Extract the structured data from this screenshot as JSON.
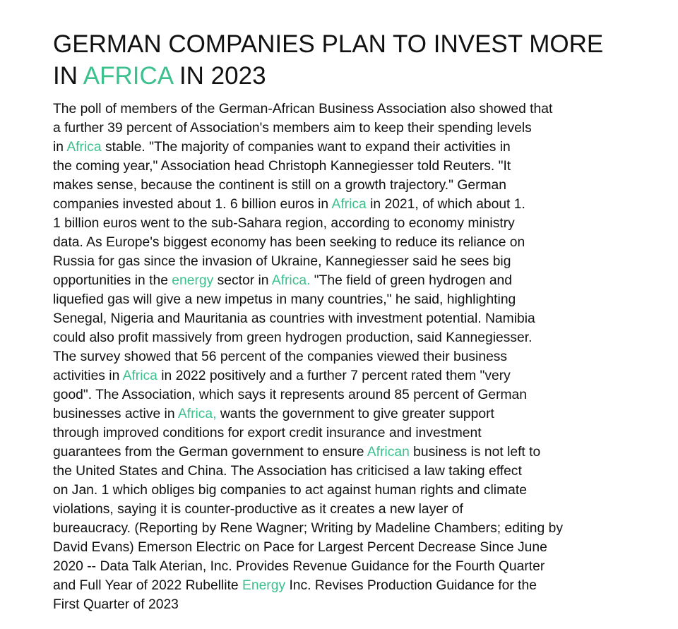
{
  "accent_color": "#3cc08e",
  "text_color": "#111111",
  "headline": {
    "lines": [
      [
        {
          "text": "GERMAN COMPANIES PLAN TO INVEST MORE",
          "hl": false
        }
      ],
      [
        {
          "text": "IN ",
          "hl": false
        },
        {
          "text": "AFRICA",
          "hl": true
        },
        {
          "text": " IN 2023",
          "hl": false
        }
      ]
    ]
  },
  "body": {
    "lines": [
      [
        {
          "text": "The poll of members of the German-African Business Association also showed that",
          "hl": false
        }
      ],
      [
        {
          "text": "a further 39 percent of Association's members aim to keep their spending levels",
          "hl": false
        }
      ],
      [
        {
          "text": "in ",
          "hl": false
        },
        {
          "text": "Africa",
          "hl": true
        },
        {
          "text": " stable. \"The majority of companies want to expand their activities in",
          "hl": false
        }
      ],
      [
        {
          "text": "the coming year,\" Association head Christoph Kannegiesser told Reuters. \"It",
          "hl": false
        }
      ],
      [
        {
          "text": "makes sense, because the continent is still on a growth trajectory.\" German",
          "hl": false
        }
      ],
      [
        {
          "text": "companies invested about 1. 6 billion euros in ",
          "hl": false
        },
        {
          "text": "Africa",
          "hl": true
        },
        {
          "text": " in 2021, of which about 1.",
          "hl": false
        }
      ],
      [
        {
          "text": "1 billion euros went to the sub-Sahara region, according to economy ministry",
          "hl": false
        }
      ],
      [
        {
          "text": "data. As Europe's biggest economy has been seeking to reduce its reliance on",
          "hl": false
        }
      ],
      [
        {
          "text": "Russia for gas since the invasion of Ukraine, Kannegiesser said he sees big",
          "hl": false
        }
      ],
      [
        {
          "text": "opportunities in the ",
          "hl": false
        },
        {
          "text": "energy",
          "hl": true
        },
        {
          "text": " sector in ",
          "hl": false
        },
        {
          "text": "Africa.",
          "hl": true
        },
        {
          "text": " \"The field of green hydrogen and",
          "hl": false
        }
      ],
      [
        {
          "text": "liquefied gas will give a new impetus in many countries,\" he said, highlighting",
          "hl": false
        }
      ],
      [
        {
          "text": "Senegal, Nigeria and Mauritania as countries with investment potential. Namibia",
          "hl": false
        }
      ],
      [
        {
          "text": "could also profit massively from green hydrogen production, said Kannegiesser.",
          "hl": false
        }
      ],
      [
        {
          "text": "The survey showed that 56 percent of the companies viewed their business",
          "hl": false
        }
      ],
      [
        {
          "text": "activities in ",
          "hl": false
        },
        {
          "text": "Africa",
          "hl": true
        },
        {
          "text": " in 2022 positively and a further 7 percent rated them \"very",
          "hl": false
        }
      ],
      [
        {
          "text": "good\". The Association, which says it represents around 85 percent of German",
          "hl": false
        }
      ],
      [
        {
          "text": "businesses active in ",
          "hl": false
        },
        {
          "text": "Africa,",
          "hl": true
        },
        {
          "text": " wants the government to give greater support",
          "hl": false
        }
      ],
      [
        {
          "text": "through improved conditions for export credit insurance and investment",
          "hl": false
        }
      ],
      [
        {
          "text": "guarantees from the German government to ensure ",
          "hl": false
        },
        {
          "text": "African",
          "hl": true
        },
        {
          "text": " business is not left to",
          "hl": false
        }
      ],
      [
        {
          "text": "the United States and China. The Association has criticised a law taking effect",
          "hl": false
        }
      ],
      [
        {
          "text": "on Jan. 1 which obliges big companies to act against human rights and climate",
          "hl": false
        }
      ],
      [
        {
          "text": "violations, saying it is counter-productive as it creates a new layer of",
          "hl": false
        }
      ],
      [
        {
          "text": "bureaucracy. (Reporting by Rene Wagner; Writing by Madeline Chambers; editing by",
          "hl": false
        }
      ],
      [
        {
          "text": "David Evans) Emerson Electric on Pace for Largest Percent Decrease Since June",
          "hl": false
        }
      ],
      [
        {
          "text": "2020 -- Data Talk Aterian, Inc. Provides Revenue Guidance for the Fourth Quarter",
          "hl": false
        }
      ],
      [
        {
          "text": "and Full Year of 2022 Rubellite ",
          "hl": false
        },
        {
          "text": "Energy",
          "hl": true
        },
        {
          "text": " Inc. Revises Production Guidance for the",
          "hl": false
        }
      ],
      [
        {
          "text": "First Quarter of 2023",
          "hl": false
        }
      ]
    ]
  }
}
